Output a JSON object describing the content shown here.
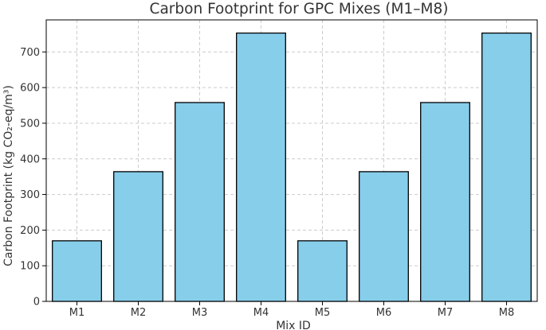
{
  "chart_data": {
    "type": "bar",
    "title": "Carbon Footprint for GPC Mixes (M1–M8)",
    "xlabel": "Mix ID",
    "ylabel": "Carbon Footprint (kg CO₂-eq/m³)",
    "categories": [
      "M1",
      "M2",
      "M3",
      "M4",
      "M5",
      "M6",
      "M7",
      "M8"
    ],
    "values": [
      170,
      364,
      558,
      753,
      170,
      364,
      558,
      753
    ],
    "ylim": [
      0,
      790
    ],
    "yticks": [
      0,
      100,
      200,
      300,
      400,
      500,
      600,
      700
    ],
    "grid": true,
    "bar_color": "#87CEEB",
    "edge_color": "#000000"
  }
}
